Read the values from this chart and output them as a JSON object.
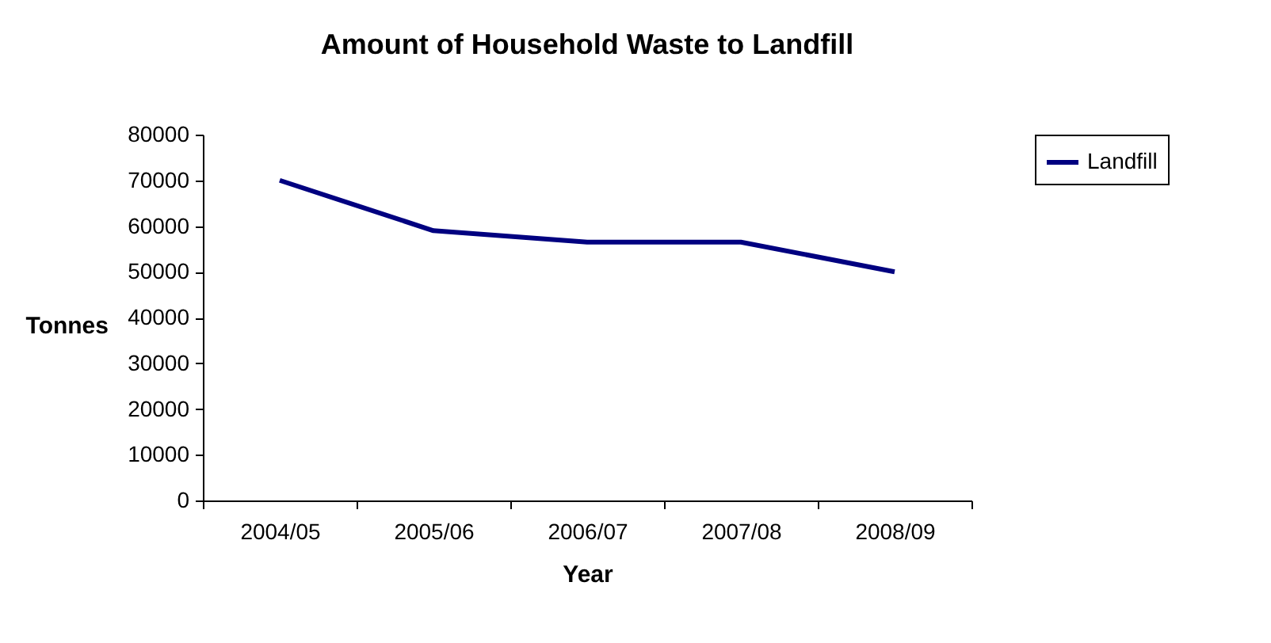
{
  "chart_data": {
    "type": "line",
    "title": "Amount of Household Waste to Landfill",
    "xlabel": "Year",
    "ylabel": "Tonnes",
    "categories": [
      "2004/05",
      "2005/06",
      "2006/07",
      "2007/08",
      "2008/09"
    ],
    "series": [
      {
        "name": "Landfill",
        "color": "#000080",
        "values": [
          70000,
          59000,
          56500,
          56500,
          50000
        ]
      }
    ],
    "ylim": [
      0,
      80000
    ],
    "yticks": [
      0,
      10000,
      20000,
      30000,
      40000,
      50000,
      60000,
      70000,
      80000
    ],
    "grid": false,
    "legend": "right",
    "marker": "none",
    "line_style": "solid"
  }
}
